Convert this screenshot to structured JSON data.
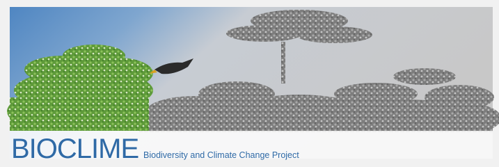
{
  "banner": {
    "title": "BIOCLIME",
    "subtitle": "Biodiversity and Climate Change Project"
  }
}
